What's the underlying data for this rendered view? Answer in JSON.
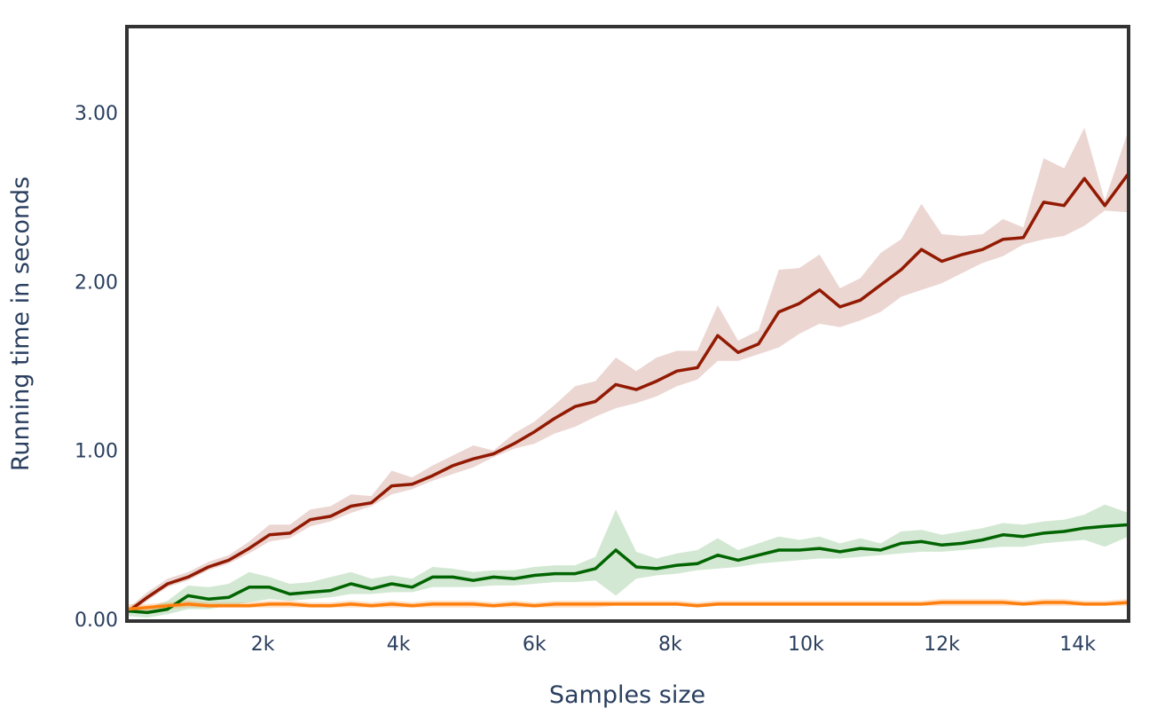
{
  "chart_data": {
    "type": "line",
    "xlabel": "Samples size",
    "ylabel": "Running time in seconds",
    "xlim": [
      0,
      14750
    ],
    "ylim": [
      0,
      3.5
    ],
    "x_ticks": [
      2000,
      4000,
      6000,
      8000,
      10000,
      12000,
      14000
    ],
    "x_tick_labels": [
      "2k",
      "4k",
      "6k",
      "8k",
      "10k",
      "12k",
      "14k"
    ],
    "y_ticks": [
      0,
      1,
      2,
      3
    ],
    "y_tick_labels": [
      "0.00",
      "1.00",
      "2.00",
      "3.00"
    ],
    "grid": false,
    "legend": "none",
    "x": [
      0,
      300,
      600,
      900,
      1200,
      1500,
      1800,
      2100,
      2400,
      2700,
      3000,
      3300,
      3600,
      3900,
      4200,
      4500,
      4800,
      5100,
      5400,
      5700,
      6000,
      6300,
      6600,
      6900,
      7200,
      7500,
      7800,
      8100,
      8400,
      8700,
      9000,
      9300,
      9600,
      9900,
      10200,
      10500,
      10800,
      11100,
      11400,
      11700,
      12000,
      12300,
      12600,
      12900,
      13200,
      13500,
      13800,
      14100,
      14400,
      14750
    ],
    "series": [
      {
        "color": "#921a03",
        "band_color": "rgba(146,26,3,0.18)",
        "values": [
          0.04,
          0.13,
          0.21,
          0.25,
          0.31,
          0.35,
          0.42,
          0.5,
          0.51,
          0.59,
          0.61,
          0.67,
          0.69,
          0.79,
          0.8,
          0.85,
          0.91,
          0.95,
          0.98,
          1.04,
          1.11,
          1.19,
          1.26,
          1.29,
          1.39,
          1.36,
          1.41,
          1.47,
          1.49,
          1.68,
          1.58,
          1.63,
          1.82,
          1.87,
          1.95,
          1.85,
          1.89,
          1.98,
          2.07,
          2.19,
          2.12,
          2.16,
          2.19,
          2.25,
          2.26,
          2.47,
          2.45,
          2.61,
          2.45,
          2.64
        ],
        "lower": [
          0.03,
          0.11,
          0.19,
          0.23,
          0.29,
          0.33,
          0.39,
          0.46,
          0.48,
          0.55,
          0.58,
          0.63,
          0.67,
          0.74,
          0.77,
          0.82,
          0.86,
          0.9,
          0.96,
          1.01,
          1.04,
          1.1,
          1.14,
          1.2,
          1.25,
          1.28,
          1.32,
          1.38,
          1.42,
          1.53,
          1.53,
          1.57,
          1.61,
          1.69,
          1.75,
          1.73,
          1.77,
          1.82,
          1.91,
          1.95,
          1.99,
          2.05,
          2.11,
          2.15,
          2.22,
          2.25,
          2.27,
          2.33,
          2.42,
          2.41
        ],
        "upper": [
          0.06,
          0.16,
          0.24,
          0.28,
          0.34,
          0.38,
          0.46,
          0.56,
          0.56,
          0.65,
          0.67,
          0.74,
          0.73,
          0.88,
          0.84,
          0.91,
          0.97,
          1.03,
          1.0,
          1.1,
          1.17,
          1.27,
          1.38,
          1.41,
          1.55,
          1.47,
          1.55,
          1.59,
          1.59,
          1.86,
          1.65,
          1.71,
          2.07,
          2.08,
          2.16,
          1.96,
          2.02,
          2.17,
          2.25,
          2.46,
          2.28,
          2.27,
          2.28,
          2.37,
          2.32,
          2.73,
          2.67,
          2.91,
          2.48,
          2.9
        ]
      },
      {
        "color": "#006400",
        "band_color": "rgba(34,139,34,0.2)",
        "values": [
          0.05,
          0.04,
          0.06,
          0.14,
          0.12,
          0.13,
          0.19,
          0.19,
          0.15,
          0.16,
          0.17,
          0.21,
          0.18,
          0.21,
          0.19,
          0.25,
          0.25,
          0.23,
          0.25,
          0.24,
          0.26,
          0.27,
          0.27,
          0.3,
          0.41,
          0.31,
          0.3,
          0.32,
          0.33,
          0.38,
          0.35,
          0.38,
          0.41,
          0.41,
          0.42,
          0.4,
          0.42,
          0.41,
          0.45,
          0.46,
          0.44,
          0.45,
          0.47,
          0.5,
          0.49,
          0.51,
          0.52,
          0.54,
          0.55,
          0.56
        ],
        "lower": [
          0.02,
          0.01,
          0.03,
          0.06,
          0.06,
          0.08,
          0.1,
          0.12,
          0.11,
          0.12,
          0.13,
          0.15,
          0.15,
          0.16,
          0.16,
          0.19,
          0.19,
          0.19,
          0.2,
          0.2,
          0.21,
          0.22,
          0.22,
          0.23,
          0.14,
          0.24,
          0.26,
          0.27,
          0.29,
          0.3,
          0.31,
          0.33,
          0.34,
          0.35,
          0.36,
          0.36,
          0.37,
          0.38,
          0.39,
          0.4,
          0.4,
          0.41,
          0.42,
          0.43,
          0.43,
          0.45,
          0.46,
          0.47,
          0.43,
          0.49
        ],
        "upper": [
          0.07,
          0.07,
          0.11,
          0.2,
          0.19,
          0.21,
          0.28,
          0.25,
          0.21,
          0.22,
          0.25,
          0.28,
          0.24,
          0.26,
          0.24,
          0.31,
          0.3,
          0.28,
          0.29,
          0.29,
          0.31,
          0.32,
          0.32,
          0.37,
          0.65,
          0.4,
          0.36,
          0.39,
          0.41,
          0.48,
          0.41,
          0.45,
          0.49,
          0.47,
          0.49,
          0.45,
          0.48,
          0.45,
          0.52,
          0.53,
          0.5,
          0.52,
          0.54,
          0.57,
          0.56,
          0.58,
          0.59,
          0.62,
          0.68,
          0.63
        ]
      },
      {
        "color": "#ff7f0e",
        "band_color": "rgba(255,127,14,0.25)",
        "values": [
          0.06,
          0.07,
          0.08,
          0.09,
          0.08,
          0.08,
          0.08,
          0.09,
          0.09,
          0.08,
          0.08,
          0.09,
          0.08,
          0.09,
          0.08,
          0.09,
          0.09,
          0.09,
          0.08,
          0.09,
          0.08,
          0.09,
          0.09,
          0.09,
          0.09,
          0.09,
          0.09,
          0.09,
          0.08,
          0.09,
          0.09,
          0.09,
          0.09,
          0.09,
          0.09,
          0.09,
          0.09,
          0.09,
          0.09,
          0.09,
          0.1,
          0.1,
          0.1,
          0.1,
          0.09,
          0.1,
          0.1,
          0.09,
          0.09,
          0.1
        ],
        "lower": [
          0.04,
          0.05,
          0.06,
          0.07,
          0.07,
          0.07,
          0.07,
          0.07,
          0.07,
          0.07,
          0.07,
          0.07,
          0.07,
          0.07,
          0.07,
          0.07,
          0.07,
          0.07,
          0.07,
          0.07,
          0.07,
          0.07,
          0.07,
          0.07,
          0.08,
          0.08,
          0.08,
          0.08,
          0.07,
          0.08,
          0.08,
          0.08,
          0.08,
          0.08,
          0.08,
          0.08,
          0.08,
          0.08,
          0.08,
          0.08,
          0.08,
          0.08,
          0.08,
          0.08,
          0.08,
          0.08,
          0.08,
          0.08,
          0.08,
          0.08
        ],
        "upper": [
          0.09,
          0.09,
          0.1,
          0.11,
          0.1,
          0.1,
          0.1,
          0.11,
          0.11,
          0.1,
          0.1,
          0.11,
          0.1,
          0.11,
          0.1,
          0.11,
          0.11,
          0.11,
          0.1,
          0.11,
          0.1,
          0.11,
          0.11,
          0.11,
          0.11,
          0.11,
          0.11,
          0.11,
          0.1,
          0.11,
          0.11,
          0.11,
          0.11,
          0.11,
          0.11,
          0.11,
          0.11,
          0.11,
          0.11,
          0.11,
          0.12,
          0.12,
          0.12,
          0.12,
          0.11,
          0.12,
          0.12,
          0.11,
          0.11,
          0.12
        ]
      }
    ]
  }
}
